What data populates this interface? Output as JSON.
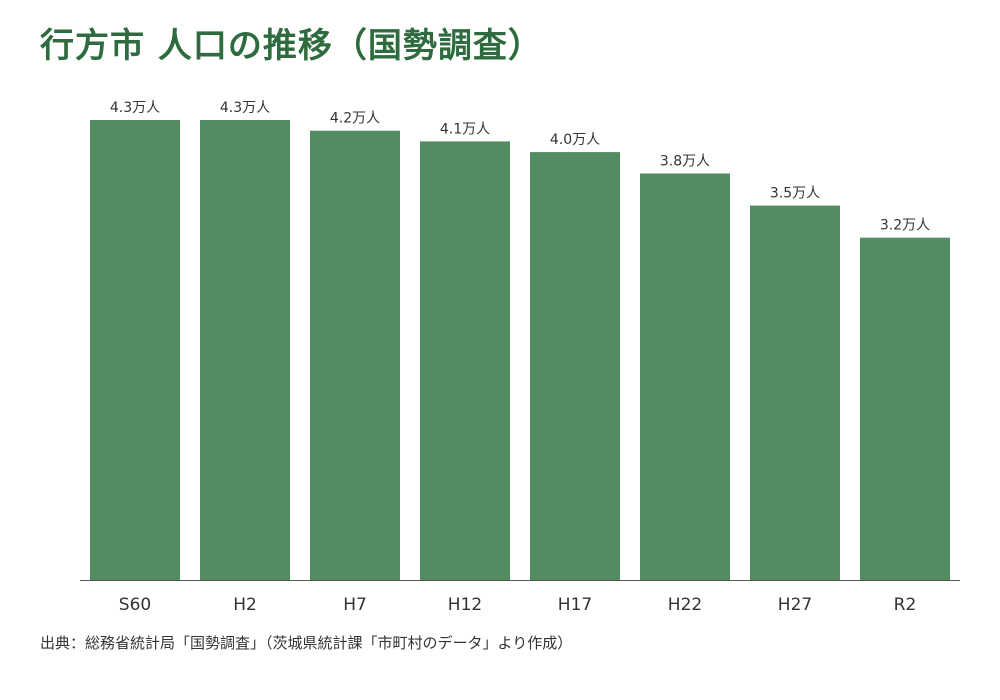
{
  "title": "行方市 人口の推移（国勢調査）",
  "source": "出典：総務省統計局「国勢調査」（茨城県統計課「市町村のデータ」より作成）",
  "colors": {
    "title": "#2e6b3e",
    "bar": "#528c62",
    "axis": "#555555",
    "label": "#333333"
  },
  "chart_data": {
    "type": "bar",
    "unit": "万人",
    "categories": [
      "S60",
      "H2",
      "H7",
      "H12",
      "H17",
      "H22",
      "H27",
      "R2"
    ],
    "values": [
      4.3,
      4.3,
      4.2,
      4.1,
      4.0,
      3.8,
      3.5,
      3.2
    ],
    "data_labels": [
      "4.3万人",
      "4.3万人",
      "4.2万人",
      "4.1万人",
      "4.0万人",
      "3.8万人",
      "3.5万人",
      "3.2万人"
    ],
    "ylim": [
      0,
      4.3
    ],
    "grid": false,
    "legend": "none"
  }
}
